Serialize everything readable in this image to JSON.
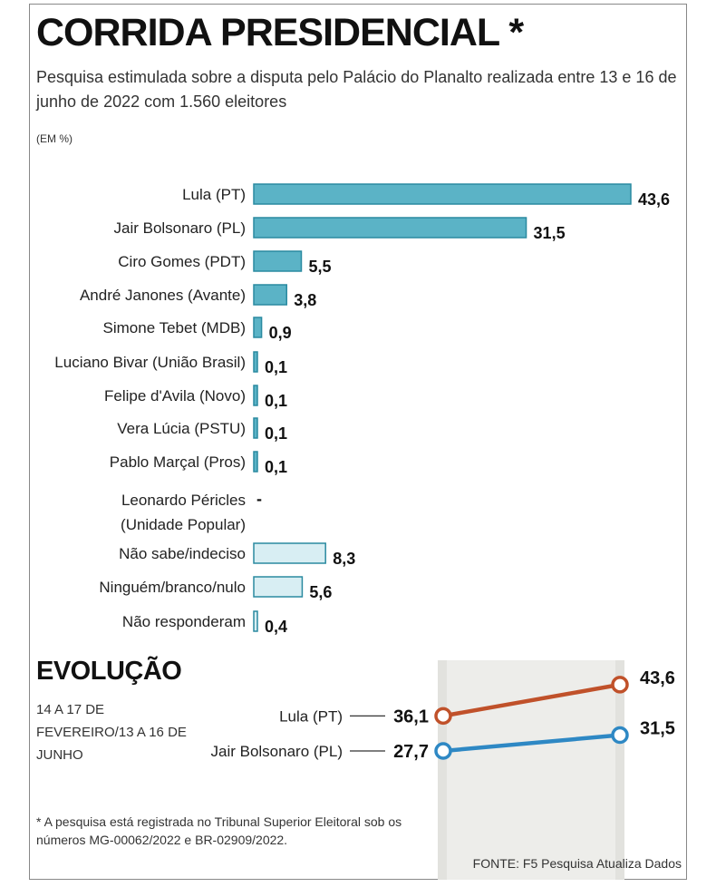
{
  "title": "CORRIDA PRESIDENCIAL *",
  "subtitle": "Pesquisa estimulada sobre a disputa pelo Palácio do Planalto realizada entre 13 e 16 de junho de 2022 com 1.560 eleitores",
  "unit": "(EM %)",
  "colors": {
    "candidate_bar": "#5bb3c6",
    "candidate_stroke": "#2a8aa0",
    "other_bar": "#d8eef3",
    "lula_line": "#c0512a",
    "bolsonaro_line": "#2e88c4",
    "shade": "#ededea"
  },
  "chart_data": [
    {
      "type": "bar",
      "orientation": "horizontal",
      "title": "CORRIDA PRESIDENCIAL *",
      "unit": "%",
      "categories": [
        "Lula (PT)",
        "Jair Bolsonaro (PL)",
        "Ciro Gomes (PDT)",
        "André Janones (Avante)",
        "Simone Tebet (MDB)",
        "Luciano Bivar (União Brasil)",
        "Felipe d'Avila (Novo)",
        "Vera Lúcia (PSTU)",
        "Pablo Marçal (Pros)",
        [
          "Leonardo Péricles",
          "(Unidade Popular)"
        ],
        "Não sabe/indeciso",
        "Ninguém/branco/nulo",
        "Não responderam"
      ],
      "values": [
        43.6,
        31.5,
        5.5,
        3.8,
        0.9,
        0.1,
        0.1,
        0.1,
        0.1,
        null,
        8.3,
        5.6,
        0.4
      ],
      "value_labels": [
        "43,6",
        "31,5",
        "5,5",
        "3,8",
        "0,9",
        "0,1",
        "0,1",
        "0,1",
        "0,1",
        "-",
        "8,3",
        "5,6",
        "0,4"
      ],
      "group": [
        "candidate",
        "candidate",
        "candidate",
        "candidate",
        "candidate",
        "candidate",
        "candidate",
        "candidate",
        "candidate",
        "candidate",
        "other",
        "other",
        "other"
      ]
    },
    {
      "type": "line",
      "title": "EVOLUÇÃO",
      "x": [
        "14 a 17 de fevereiro",
        "13 a 16 de junho"
      ],
      "series": [
        {
          "name": "Lula (PT)",
          "values": [
            36.1,
            43.6
          ],
          "value_labels": [
            "36,1",
            "43,6"
          ]
        },
        {
          "name": "Jair Bolsonaro (PL)",
          "values": [
            27.7,
            31.5
          ],
          "value_labels": [
            "27,7",
            "31,5"
          ]
        }
      ]
    }
  ],
  "evolution": {
    "title": "EVOLUÇÃO",
    "period": "14 a 17 de fevereiro/13 a 16 de junho"
  },
  "footnote": "* A pesquisa está registrada no Tribunal Superior Eleitoral sob os números MG-00062/2022 e BR-02909/2022.",
  "source": "FONTE: F5 Pesquisa Atualiza Dados"
}
